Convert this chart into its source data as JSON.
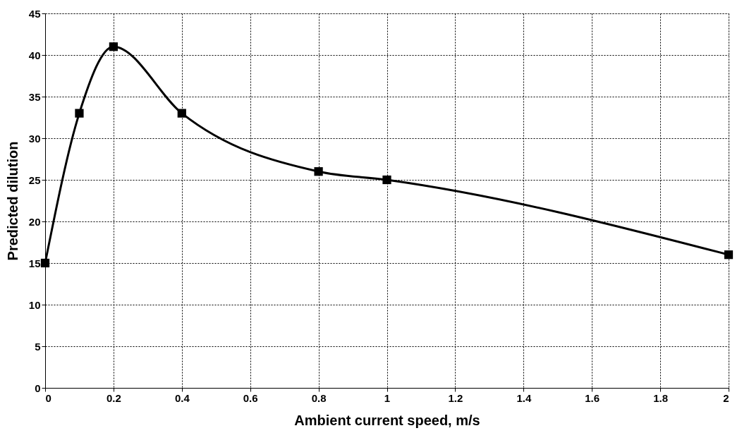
{
  "chart_data": {
    "type": "line",
    "xlabel": "Ambient current speed, m/s",
    "ylabel": "Predicted dilution",
    "x": [
      0,
      0.1,
      0.2,
      0.4,
      0.8,
      1,
      2
    ],
    "series": [
      {
        "color": "#000000",
        "values": [
          15,
          33,
          41,
          33,
          26,
          25,
          16
        ]
      }
    ],
    "xlim": [
      0,
      2
    ],
    "xticks": [
      0,
      0.2,
      0.4,
      0.6,
      0.8,
      1,
      1.2,
      1.4,
      1.6,
      1.8,
      2
    ],
    "ylim": [
      0,
      45
    ],
    "yticks": [
      0,
      5,
      10,
      15,
      20,
      25,
      30,
      35,
      40,
      45
    ],
    "grid": true,
    "marker": "square",
    "line_style": "solid"
  }
}
